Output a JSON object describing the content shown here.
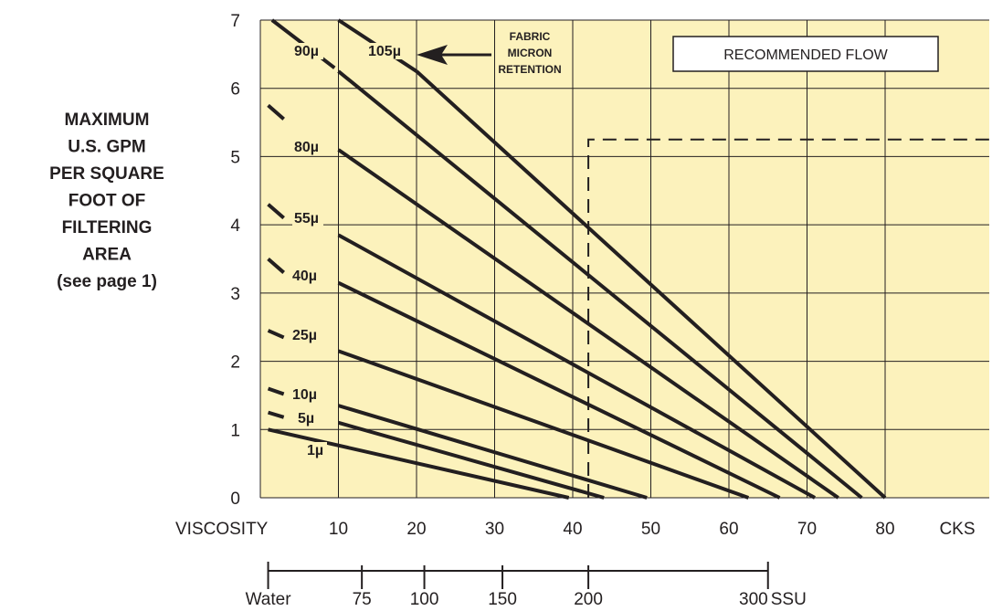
{
  "chart_data": {
    "type": "line",
    "ylabel_lines": [
      "MAXIMUM",
      "U.S. GPM",
      "PER SQUARE",
      "FOOT OF",
      "FILTERING",
      "AREA",
      "(see page 1)"
    ],
    "xlabel": "VISCOSITY",
    "x_unit": "CKS",
    "xlim": [
      0,
      80
    ],
    "ylim": [
      0,
      7
    ],
    "x_ticks": [
      10,
      20,
      30,
      40,
      50,
      60,
      70,
      80
    ],
    "y_ticks": [
      0,
      1,
      2,
      3,
      4,
      5,
      6,
      7
    ],
    "grid": true,
    "ssu_scale": {
      "unit": "SSU",
      "ticks": [
        {
          "label": "Water",
          "cks": 1
        },
        {
          "label": "75",
          "cks": 13
        },
        {
          "label": "100",
          "cks": 21
        },
        {
          "label": "150",
          "cks": 31
        },
        {
          "label": "200",
          "cks": 42
        },
        {
          "label": "300",
          "cks": 65
        }
      ]
    },
    "annotation": {
      "lines": [
        "FABRIC",
        "MICRON",
        "RETENTION"
      ],
      "points_to": "105µ"
    },
    "legend": {
      "label": "RECOMMENDED FLOW",
      "placement": "top-right"
    },
    "recommended_flow": {
      "x": 42,
      "y": 5.25
    },
    "series": [
      {
        "name": "1µ",
        "start": [
          1,
          1.0
        ],
        "end": [
          39.5,
          0
        ]
      },
      {
        "name": "5µ",
        "start": [
          10,
          1.1
        ],
        "end": [
          44,
          0
        ]
      },
      {
        "name": "10µ",
        "start": [
          10,
          1.35
        ],
        "end": [
          49.5,
          0
        ]
      },
      {
        "name": "25µ",
        "start": [
          10,
          2.15
        ],
        "end": [
          62.5,
          0
        ]
      },
      {
        "name": "40µ",
        "start": [
          10,
          3.15
        ],
        "end": [
          66.5,
          0
        ]
      },
      {
        "name": "55µ",
        "start": [
          10,
          3.85
        ],
        "end": [
          71,
          0
        ]
      },
      {
        "name": "80µ",
        "start": [
          10,
          5.1
        ],
        "end": [
          74,
          0
        ]
      },
      {
        "name": "90µ",
        "start": [
          10,
          6.25
        ],
        "end": [
          77,
          0
        ]
      },
      {
        "name": "105µ",
        "start": [
          20,
          6.25
        ],
        "end": [
          80,
          0
        ]
      }
    ],
    "lead_ins": [
      {
        "series": "90µ",
        "from": [
          1.5,
          7.0
        ],
        "to": [
          9.5,
          6.3
        ]
      },
      {
        "series": "105µ",
        "from": [
          10,
          7.0
        ],
        "to": [
          20,
          6.25
        ]
      },
      {
        "series": "80µ",
        "from": [
          1.0,
          5.75
        ],
        "to": [
          3,
          5.55
        ]
      },
      {
        "series": "55µ",
        "from": [
          1.0,
          4.3
        ],
        "to": [
          3,
          4.1
        ]
      },
      {
        "series": "40µ",
        "from": [
          1.0,
          3.5
        ],
        "to": [
          3,
          3.3
        ]
      },
      {
        "series": "25µ",
        "from": [
          1.0,
          2.45
        ],
        "to": [
          3,
          2.35
        ]
      },
      {
        "series": "10µ",
        "from": [
          1.0,
          1.6
        ],
        "to": [
          3,
          1.52
        ]
      },
      {
        "series": "5µ",
        "from": [
          1.0,
          1.25
        ],
        "to": [
          3,
          1.18
        ]
      }
    ]
  }
}
